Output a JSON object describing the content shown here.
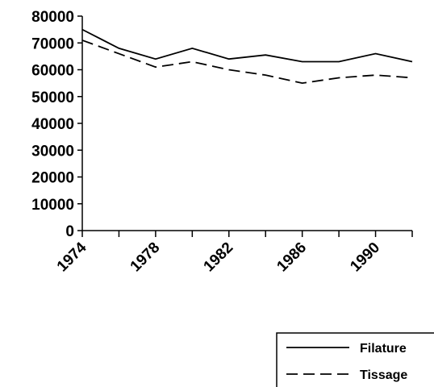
{
  "chart_data": {
    "type": "line",
    "categories": [
      "1974",
      null,
      "1978",
      null,
      "1982",
      null,
      "1986",
      null,
      "1990",
      null
    ],
    "series": [
      {
        "name": "Filature",
        "color": "#000000",
        "dash": false,
        "values": [
          75000,
          68000,
          64000,
          68000,
          64000,
          65500,
          63000,
          63000,
          66000,
          63000
        ]
      },
      {
        "name": "Tissage",
        "color": "#000000",
        "dash": true,
        "values": [
          71000,
          66000,
          61000,
          63000,
          60000,
          58000,
          55000,
          57000,
          58000,
          57000
        ]
      }
    ],
    "ylim": [
      0,
      80000
    ],
    "yticks": [
      0,
      10000,
      20000,
      30000,
      40000,
      50000,
      60000,
      70000,
      80000
    ],
    "grid": false,
    "legend": "bottom-right"
  }
}
